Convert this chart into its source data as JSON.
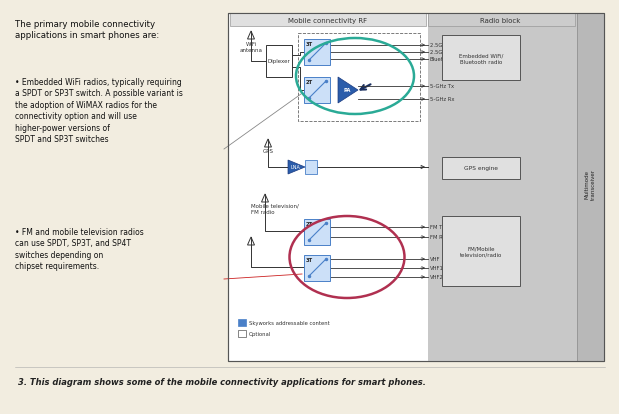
{
  "bg_color": "#f2ede0",
  "diagram_bg": "#ffffff",
  "radio_block_bg": "#c8c8c8",
  "caption": "3. This diagram shows some of the mobile connectivity applications for smart phones.",
  "title_left": "The primary mobile connectivity\napplications in smart phones are:",
  "bullet1": "• Embedded WiFi radios, typically requiring\na SPDT or SP3T switch. A possible variant is\nthe adoption of WiMAX radios for the\nconnectivity option and will use\nhigher-power versions of\nSPDT and SP3T switches",
  "bullet2": "• FM and mobile television radios\ncan use SPDT, SP3T, and SP4T\nswitches depending on\nchipset requirements.",
  "section_mobile_rf": "Mobile connectivity RF",
  "section_radio_block": "Radio block",
  "label_wifi_antenna": "WiFi\nantenna",
  "label_diplexer": "Diplexer",
  "label_gps": "GPS",
  "label_lna": "LNA",
  "label_gps_engine": "GPS engine",
  "label_mobile_tv": "Mobile television/\nFM radio",
  "label_multimode": "Multimode\ntransceiver",
  "label_2g5_rx": "2.5G Rx",
  "label_2g5_tx": "2.5G Tx",
  "label_bluetooth": "Bluetooth",
  "label_5ghz_tx": "5-GHz Tx",
  "label_5ghz_rx": "5-GHz Rx",
  "label_fm_tx": "FM Tx",
  "label_fm_rx": "FM Rx",
  "label_vhf": "VHF",
  "label_vhf1": "VHF1",
  "label_vhf2": "VHF2",
  "label_embedded_wifi": "Embedded WiFi/\nBluetooth radio",
  "label_fm_mobile": "FM/Mobile\ntelevision/radio",
  "label_3t_top": "3T",
  "label_2t_bottom": "2T",
  "label_2t_fm": "2T",
  "label_3t_fm": "3T",
  "label_pa": "PA",
  "legend_blue": "Skyworks addressable content",
  "legend_white": "Optional",
  "teal_circle_color": "#2aaa96",
  "red_circle_color": "#b03050",
  "switch_blue": "#4a80c8",
  "switch_fill": "#cce0f8",
  "line_color": "#333333",
  "arrow_dark": "#1a3060"
}
